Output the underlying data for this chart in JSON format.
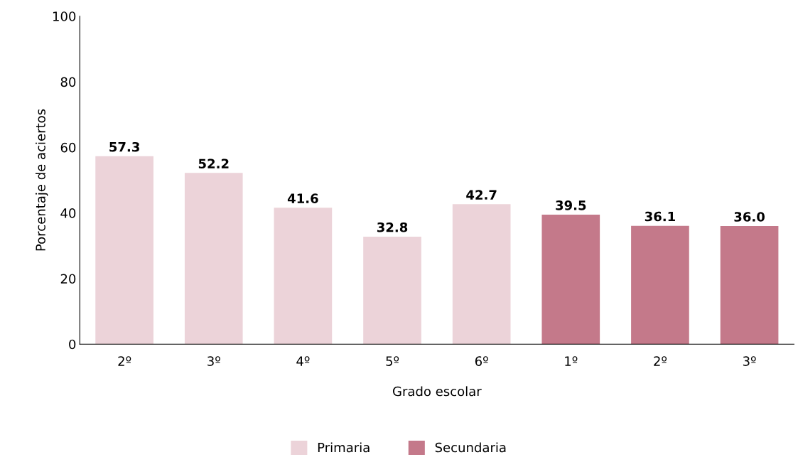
{
  "chart_data": {
    "type": "bar",
    "xlabel": "Grado escolar",
    "ylabel": "Porcentaje de aciertos",
    "categories": [
      "2º",
      "3º",
      "4º",
      "5º",
      "6º",
      "1º",
      "2º",
      "3º"
    ],
    "series": [
      {
        "name": "Primaria",
        "color": "#ecd3d9",
        "values": [
          57.3,
          52.2,
          41.6,
          32.8,
          42.7,
          null,
          null,
          null
        ],
        "value_labels": [
          "57.3",
          "52.2",
          "41.6",
          "32.8",
          "42.7",
          null,
          null,
          null
        ]
      },
      {
        "name": "Secundaria",
        "color": "#c4798a",
        "values": [
          null,
          null,
          null,
          null,
          null,
          39.5,
          36.1,
          36.0
        ],
        "value_labels": [
          null,
          null,
          null,
          null,
          null,
          "39.5",
          "36.1",
          "36.0"
        ]
      }
    ],
    "ylim": [
      0,
      100
    ],
    "yticks": [
      0,
      20,
      40,
      60,
      80,
      100
    ],
    "grid": false,
    "legend": "bottom"
  }
}
